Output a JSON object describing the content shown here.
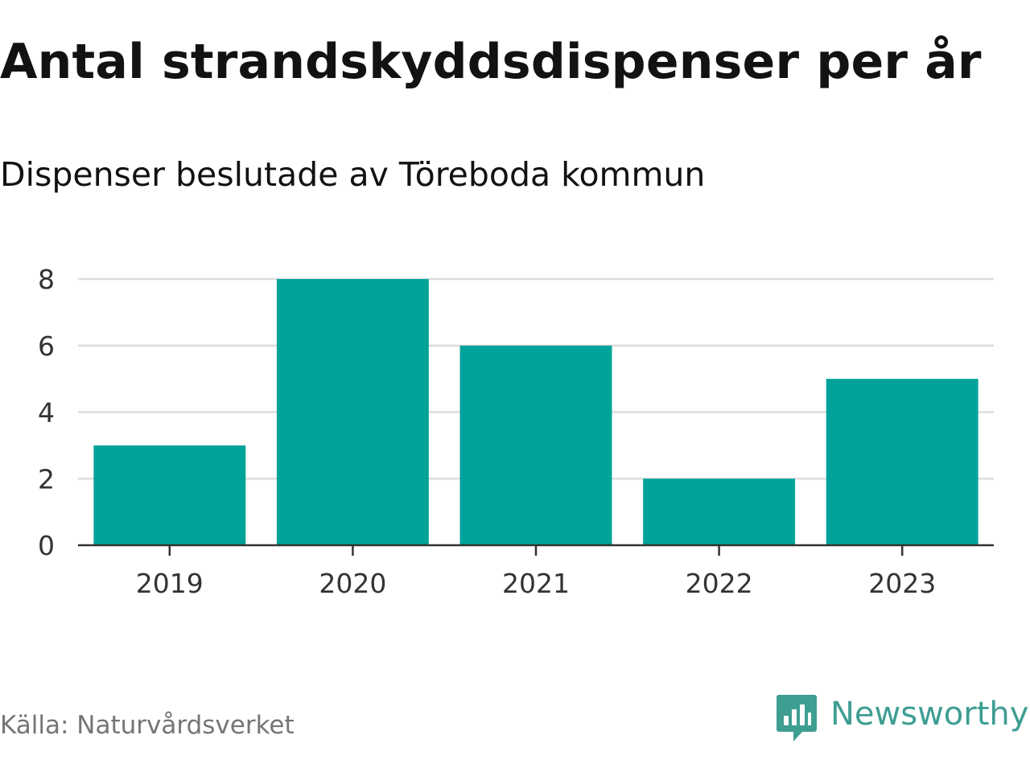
{
  "header": {
    "title": "Antal strandskyddsdispenser per år",
    "subtitle": "Dispenser beslutade av Töreboda kommun"
  },
  "footer": {
    "source": "Källa: Naturvårdsverket",
    "brand": "Newsworthy",
    "brand_color": "#3e9e91"
  },
  "chart_data": {
    "type": "bar",
    "title": "Antal strandskyddsdispenser per år",
    "subtitle": "Dispenser beslutade av Töreboda kommun",
    "categories": [
      "2019",
      "2020",
      "2021",
      "2022",
      "2023"
    ],
    "values": [
      3,
      8,
      6,
      2,
      5
    ],
    "ylim": [
      0,
      8
    ],
    "yticks": [
      0,
      2,
      4,
      6,
      8
    ],
    "xlabel": "",
    "ylabel": "",
    "grid": true,
    "bar_color": "#00a39a",
    "grid_color": "#dddddd",
    "axis_color": "#333333"
  }
}
